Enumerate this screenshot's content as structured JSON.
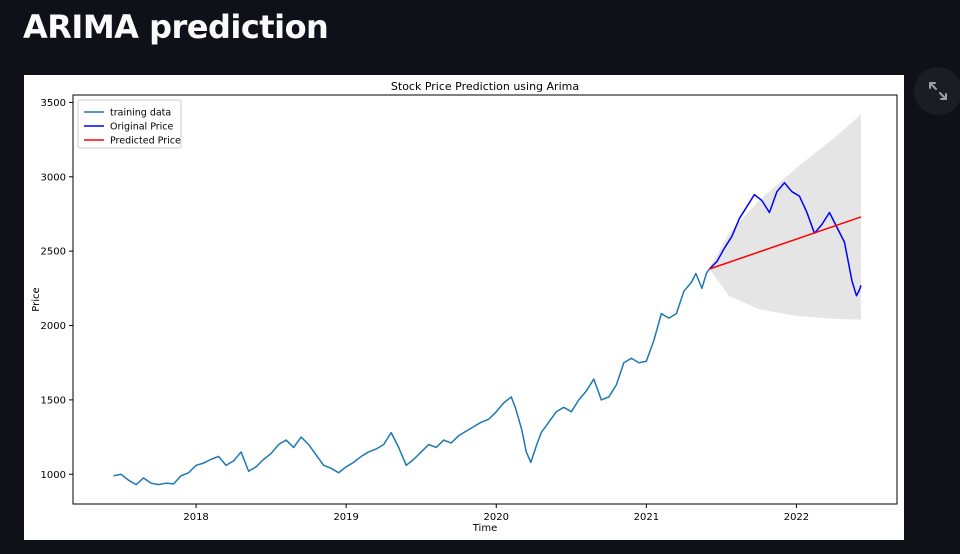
{
  "page": {
    "title": "ARIMA prediction"
  },
  "toolbar": {
    "expand_icon": "fullscreen-expand-icon"
  },
  "colors": {
    "background": "#0e1117",
    "training": "#1f77b4",
    "original": "#0000ff",
    "predicted": "#ff0000",
    "confidence": "#d3d3d3"
  },
  "chart_data": {
    "type": "line",
    "title": "Stock Price Prediction using Arima",
    "xlabel": "Time",
    "ylabel": "Price",
    "x_ticks": [
      {
        "label": "2018",
        "value": 2018.0
      },
      {
        "label": "2019",
        "value": 2019.0
      },
      {
        "label": "2020",
        "value": 2020.0
      },
      {
        "label": "2021",
        "value": 2021.0
      },
      {
        "label": "2022",
        "value": 2022.0
      }
    ],
    "y_ticks": [
      1000,
      1500,
      2000,
      2500,
      3000,
      3500
    ],
    "xlim": [
      2017.18,
      2022.67
    ],
    "ylim": [
      800,
      3550
    ],
    "legend": {
      "placement": "top-left",
      "entries": [
        "training data",
        "Original Price",
        "Predicted Price"
      ]
    },
    "grid": false,
    "series": [
      {
        "name": "training data",
        "points": [
          [
            2017.45,
            990
          ],
          [
            2017.5,
            1000
          ],
          [
            2017.55,
            960
          ],
          [
            2017.6,
            930
          ],
          [
            2017.65,
            975
          ],
          [
            2017.7,
            940
          ],
          [
            2017.75,
            930
          ],
          [
            2017.8,
            940
          ],
          [
            2017.85,
            935
          ],
          [
            2017.9,
            990
          ],
          [
            2017.95,
            1010
          ],
          [
            2018.0,
            1060
          ],
          [
            2018.05,
            1075
          ],
          [
            2018.1,
            1100
          ],
          [
            2018.15,
            1120
          ],
          [
            2018.2,
            1060
          ],
          [
            2018.25,
            1090
          ],
          [
            2018.3,
            1150
          ],
          [
            2018.35,
            1020
          ],
          [
            2018.4,
            1050
          ],
          [
            2018.45,
            1100
          ],
          [
            2018.5,
            1140
          ],
          [
            2018.55,
            1200
          ],
          [
            2018.6,
            1230
          ],
          [
            2018.65,
            1180
          ],
          [
            2018.7,
            1250
          ],
          [
            2018.75,
            1200
          ],
          [
            2018.8,
            1130
          ],
          [
            2018.85,
            1060
          ],
          [
            2018.9,
            1040
          ],
          [
            2018.95,
            1010
          ],
          [
            2019.0,
            1050
          ],
          [
            2019.05,
            1080
          ],
          [
            2019.1,
            1120
          ],
          [
            2019.15,
            1150
          ],
          [
            2019.2,
            1170
          ],
          [
            2019.25,
            1200
          ],
          [
            2019.3,
            1280
          ],
          [
            2019.35,
            1180
          ],
          [
            2019.4,
            1060
          ],
          [
            2019.45,
            1100
          ],
          [
            2019.5,
            1150
          ],
          [
            2019.55,
            1200
          ],
          [
            2019.6,
            1180
          ],
          [
            2019.65,
            1230
          ],
          [
            2019.7,
            1210
          ],
          [
            2019.75,
            1260
          ],
          [
            2019.8,
            1290
          ],
          [
            2019.85,
            1320
          ],
          [
            2019.9,
            1350
          ],
          [
            2019.95,
            1370
          ],
          [
            2020.0,
            1420
          ],
          [
            2020.05,
            1480
          ],
          [
            2020.1,
            1520
          ],
          [
            2020.13,
            1440
          ],
          [
            2020.17,
            1300
          ],
          [
            2020.2,
            1150
          ],
          [
            2020.23,
            1080
          ],
          [
            2020.27,
            1200
          ],
          [
            2020.3,
            1280
          ],
          [
            2020.35,
            1350
          ],
          [
            2020.4,
            1420
          ],
          [
            2020.45,
            1450
          ],
          [
            2020.5,
            1420
          ],
          [
            2020.55,
            1500
          ],
          [
            2020.6,
            1560
          ],
          [
            2020.65,
            1640
          ],
          [
            2020.7,
            1500
          ],
          [
            2020.75,
            1520
          ],
          [
            2020.8,
            1600
          ],
          [
            2020.85,
            1750
          ],
          [
            2020.9,
            1780
          ],
          [
            2020.95,
            1750
          ],
          [
            2021.0,
            1760
          ],
          [
            2021.05,
            1900
          ],
          [
            2021.1,
            2080
          ],
          [
            2021.15,
            2050
          ],
          [
            2021.2,
            2080
          ],
          [
            2021.25,
            2230
          ],
          [
            2021.3,
            2290
          ],
          [
            2021.33,
            2350
          ],
          [
            2021.37,
            2250
          ],
          [
            2021.4,
            2350
          ],
          [
            2021.42,
            2380
          ]
        ]
      },
      {
        "name": "Original Price",
        "points": [
          [
            2021.42,
            2380
          ],
          [
            2021.47,
            2430
          ],
          [
            2021.52,
            2520
          ],
          [
            2021.57,
            2600
          ],
          [
            2021.62,
            2720
          ],
          [
            2021.67,
            2800
          ],
          [
            2021.72,
            2880
          ],
          [
            2021.77,
            2840
          ],
          [
            2021.82,
            2760
          ],
          [
            2021.87,
            2900
          ],
          [
            2021.92,
            2960
          ],
          [
            2021.97,
            2900
          ],
          [
            2022.02,
            2870
          ],
          [
            2022.07,
            2760
          ],
          [
            2022.12,
            2620
          ],
          [
            2022.17,
            2680
          ],
          [
            2022.22,
            2760
          ],
          [
            2022.27,
            2660
          ],
          [
            2022.32,
            2560
          ],
          [
            2022.37,
            2300
          ],
          [
            2022.4,
            2200
          ],
          [
            2022.42,
            2240
          ],
          [
            2022.43,
            2270
          ]
        ]
      },
      {
        "name": "Predicted Price",
        "points": [
          [
            2021.42,
            2380
          ],
          [
            2022.43,
            2730
          ]
        ]
      },
      {
        "name": "confidence band",
        "upper": [
          [
            2021.42,
            2380
          ],
          [
            2021.55,
            2620
          ],
          [
            2021.75,
            2840
          ],
          [
            2022.0,
            3060
          ],
          [
            2022.25,
            3260
          ],
          [
            2022.43,
            3420
          ]
        ],
        "lower": [
          [
            2021.42,
            2380
          ],
          [
            2021.55,
            2200
          ],
          [
            2021.75,
            2110
          ],
          [
            2022.0,
            2065
          ],
          [
            2022.25,
            2045
          ],
          [
            2022.43,
            2040
          ]
        ]
      }
    ]
  }
}
